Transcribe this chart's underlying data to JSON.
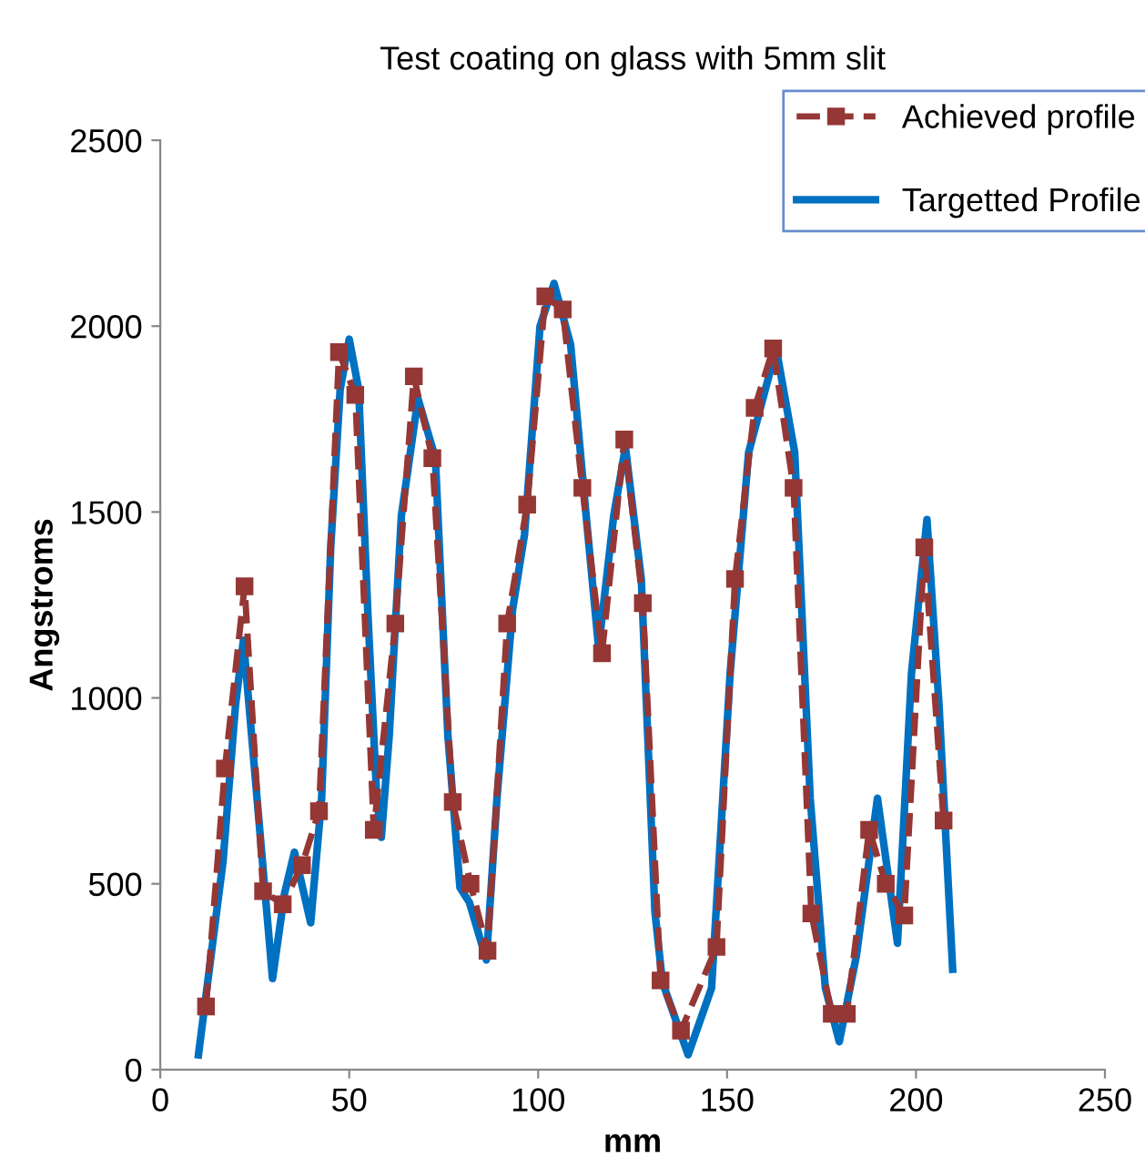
{
  "chart_data": {
    "type": "line",
    "title": "Test coating on glass with 5mm slit",
    "xlabel": "mm",
    "ylabel": "Angstroms",
    "xlim": [
      0,
      250
    ],
    "ylim": [
      0,
      2500
    ],
    "xticks": [
      0,
      50,
      100,
      150,
      200,
      250
    ],
    "yticks": [
      0,
      500,
      1000,
      1500,
      2000,
      2500
    ],
    "grid": false,
    "legend": "top right",
    "series": [
      {
        "name": "Achieved profile",
        "color": "#953735",
        "marker": "square",
        "line_style": "dashed",
        "x": [
          12.1,
          17.1,
          22.3,
          27.2,
          32.4,
          37.5,
          42,
          47.3,
          51.6,
          56.5,
          62.2,
          67.1,
          72,
          77.4,
          82.1,
          86.6,
          91.8,
          97.1,
          101.9,
          106.5,
          111.7,
          116.9,
          122.8,
          127.7,
          132.4,
          137.8,
          147.2,
          152.1,
          157.3,
          162.2,
          167.6,
          172.3,
          177.7,
          181.7,
          187.6,
          192,
          196.9,
          202.2,
          207.3
        ],
        "values": [
          170,
          810,
          1300,
          480,
          445,
          550,
          695,
          1930,
          1815,
          645,
          1200,
          1865,
          1645,
          720,
          500,
          320,
          1200,
          1520,
          2080,
          2045,
          1565,
          1120,
          1695,
          1255,
          240,
          105,
          330,
          1320,
          1780,
          1940,
          1565,
          420,
          150,
          150,
          645,
          500,
          415,
          1405,
          670
        ]
      },
      {
        "name": "Targetted Profile",
        "color": "#0070c0",
        "marker": "none",
        "line_style": "solid",
        "x": [
          10.1,
          16.6,
          19.9,
          22,
          25.6,
          29.7,
          32.9,
          35.5,
          39.8,
          42.7,
          45.1,
          47.6,
          50,
          52.5,
          54.9,
          57.3,
          58.5,
          60.6,
          63.8,
          68.2,
          72.8,
          76.1,
          79.3,
          81.8,
          86.3,
          89.1,
          93.2,
          96.4,
          100.5,
          104.2,
          108.6,
          112.7,
          116,
          120,
          123.1,
          127.3,
          130.9,
          132.9,
          139.7,
          145.9,
          150.8,
          155.7,
          163,
          167.9,
          172,
          176,
          179.7,
          184.2,
          189.8,
          195.1,
          198.8,
          202.9,
          206.1,
          209.7
        ],
        "values": [
          40,
          560,
          980,
          1155,
          730,
          245,
          475,
          585,
          395,
          730,
          1405,
          1830,
          1965,
          1830,
          1235,
          730,
          625,
          900,
          1490,
          1805,
          1645,
          900,
          490,
          450,
          295,
          730,
          1235,
          1440,
          2000,
          2115,
          1950,
          1490,
          1135,
          1490,
          1675,
          1320,
          425,
          235,
          40,
          220,
          1065,
          1660,
          1940,
          1660,
          730,
          220,
          75,
          305,
          730,
          340,
          1065,
          1480,
          980,
          270
        ]
      }
    ]
  }
}
